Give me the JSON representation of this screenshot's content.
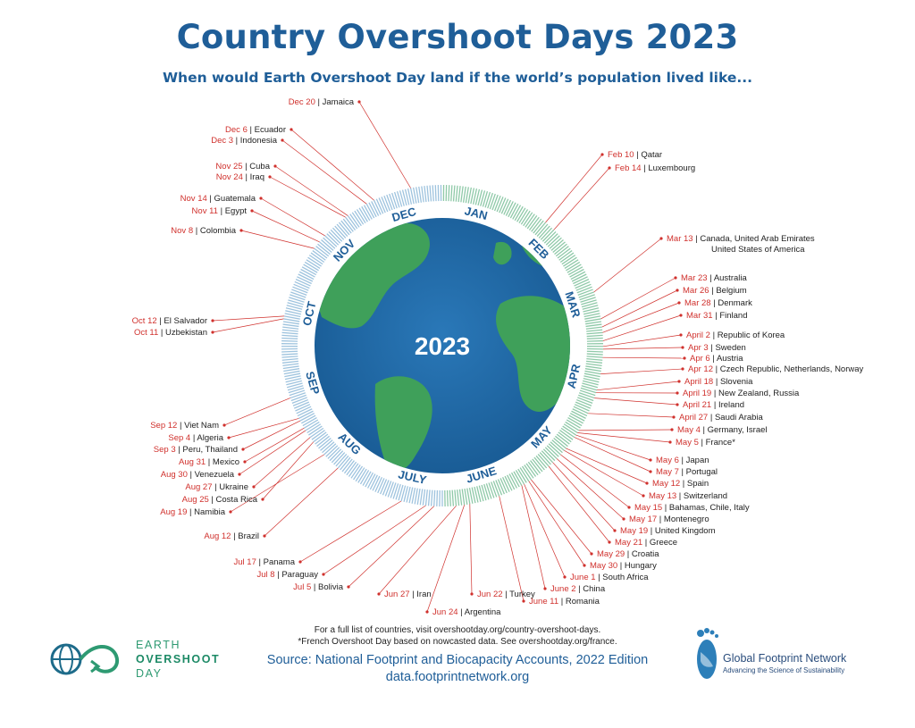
{
  "title": "Country Overshoot Days 2023",
  "subtitle": "When would Earth Overshoot Day land if the world’s population lived like...",
  "center_year": "2023",
  "months": [
    "JAN",
    "FEB",
    "MAR",
    "APR",
    "MAY",
    "JUNE",
    "JULY",
    "AUG",
    "SEP",
    "OCT",
    "NOV",
    "DEC"
  ],
  "colors": {
    "title": "#1f5e98",
    "date": "#d0312d",
    "month": "#1f5e98",
    "ocean": "#1e66a4",
    "land": "#3fa05a"
  },
  "entries": [
    {
      "date": "Feb 10",
      "countries": "Qatar",
      "side": "right"
    },
    {
      "date": "Feb 14",
      "countries": "Luxembourg",
      "side": "right"
    },
    {
      "date": "Mar 13",
      "countries": "Canada, United Arab Emirates",
      "countries2": "United States of America",
      "side": "right"
    },
    {
      "date": "Mar 23",
      "countries": "Australia",
      "side": "right"
    },
    {
      "date": "Mar 26",
      "countries": "Belgium",
      "side": "right"
    },
    {
      "date": "Mar 28",
      "countries": "Denmark",
      "side": "right"
    },
    {
      "date": "Mar 31",
      "countries": "Finland",
      "side": "right"
    },
    {
      "date": "April 2",
      "countries": "Republic of Korea",
      "side": "right"
    },
    {
      "date": "Apr 3",
      "countries": "Sweden",
      "side": "right"
    },
    {
      "date": "Apr 6",
      "countries": "Austria",
      "side": "right"
    },
    {
      "date": "Apr 12",
      "countries": "Czech Republic, Netherlands, Norway",
      "side": "right"
    },
    {
      "date": "April 18",
      "countries": "Slovenia",
      "side": "right"
    },
    {
      "date": "April 19",
      "countries": "New Zealand, Russia",
      "side": "right"
    },
    {
      "date": "April 21",
      "countries": "Ireland",
      "side": "right"
    },
    {
      "date": "April 27",
      "countries": "Saudi Arabia",
      "side": "right"
    },
    {
      "date": "May 4",
      "countries": "Germany, Israel",
      "side": "right"
    },
    {
      "date": "May 5",
      "countries": "France*",
      "side": "right"
    },
    {
      "date": "May 6",
      "countries": "Japan",
      "side": "right"
    },
    {
      "date": "May 7",
      "countries": "Portugal",
      "side": "right"
    },
    {
      "date": "May 12",
      "countries": "Spain",
      "side": "right"
    },
    {
      "date": "May 13",
      "countries": "Switzerland",
      "side": "right"
    },
    {
      "date": "May 15",
      "countries": "Bahamas, Chile, Italy",
      "side": "right"
    },
    {
      "date": "May 17",
      "countries": "Montenegro",
      "side": "right"
    },
    {
      "date": "May 19",
      "countries": "United Kingdom",
      "side": "right"
    },
    {
      "date": "May 21",
      "countries": "Greece",
      "side": "right"
    },
    {
      "date": "May 29",
      "countries": "Croatia",
      "side": "right"
    },
    {
      "date": "May 30",
      "countries": "Hungary",
      "side": "right"
    },
    {
      "date": "June 1",
      "countries": "South Africa",
      "side": "right"
    },
    {
      "date": "June 2",
      "countries": "China",
      "side": "right"
    },
    {
      "date": "June 11",
      "countries": "Romania",
      "side": "right"
    },
    {
      "date": "Jun 22",
      "countries": "Turkey",
      "side": "right"
    },
    {
      "date": "Jun 24",
      "countries": "Argentina",
      "side": "right"
    },
    {
      "date": "Jun 27",
      "countries": "Iran",
      "side": "right"
    },
    {
      "date": "Jul 5",
      "countries": "Bolivia",
      "side": "left"
    },
    {
      "date": "Jul 8",
      "countries": "Paraguay",
      "side": "left"
    },
    {
      "date": "Jul 17",
      "countries": "Panama",
      "side": "left"
    },
    {
      "date": "Aug 12",
      "countries": "Brazil",
      "side": "left"
    },
    {
      "date": "Aug 19",
      "countries": "Namibia",
      "side": "left"
    },
    {
      "date": "Aug 25",
      "countries": "Costa Rica",
      "side": "left"
    },
    {
      "date": "Aug 27",
      "countries": "Ukraine",
      "side": "left"
    },
    {
      "date": "Aug 30",
      "countries": "Venezuela",
      "side": "left"
    },
    {
      "date": "Aug 31",
      "countries": "Mexico",
      "side": "left"
    },
    {
      "date": "Sep 3",
      "countries": "Peru, Thailand",
      "side": "left"
    },
    {
      "date": "Sep 4",
      "countries": "Algeria",
      "side": "left"
    },
    {
      "date": "Sep 12",
      "countries": "Viet Nam",
      "side": "left"
    },
    {
      "date": "Oct 11",
      "countries": "Uzbekistan",
      "side": "left"
    },
    {
      "date": "Oct 12",
      "countries": "El Salvador",
      "side": "left"
    },
    {
      "date": "Nov 8",
      "countries": "Colombia",
      "side": "left"
    },
    {
      "date": "Nov 11",
      "countries": "Egypt",
      "side": "left"
    },
    {
      "date": "Nov 14",
      "countries": "Guatemala",
      "side": "left"
    },
    {
      "date": "Nov 24",
      "countries": "Iraq",
      "side": "left"
    },
    {
      "date": "Nov 25",
      "countries": "Cuba",
      "side": "left"
    },
    {
      "date": "Dec 3",
      "countries": "Indonesia",
      "side": "left"
    },
    {
      "date": "Dec 6",
      "countries": "Ecuador",
      "side": "left"
    },
    {
      "date": "Dec 20",
      "countries": "Jamaica",
      "side": "left"
    }
  ],
  "footer": {
    "note1": "For a full list of countries, visit overshootday.org/country-overshoot-days.",
    "note2": "*French Overshoot Day based on nowcasted data. See overshootday.org/france.",
    "source": "Source: National Footprint and Biocapacity Accounts, 2022 Edition",
    "source_url": "data.footprintnetwork.org"
  },
  "logo_left": {
    "line1": "EARTH",
    "line2": "OVERSHOOT",
    "line3": "DAY"
  },
  "logo_right": {
    "name": "Global Footprint Network",
    "tagline": "Advancing the Science of Sustainability"
  }
}
